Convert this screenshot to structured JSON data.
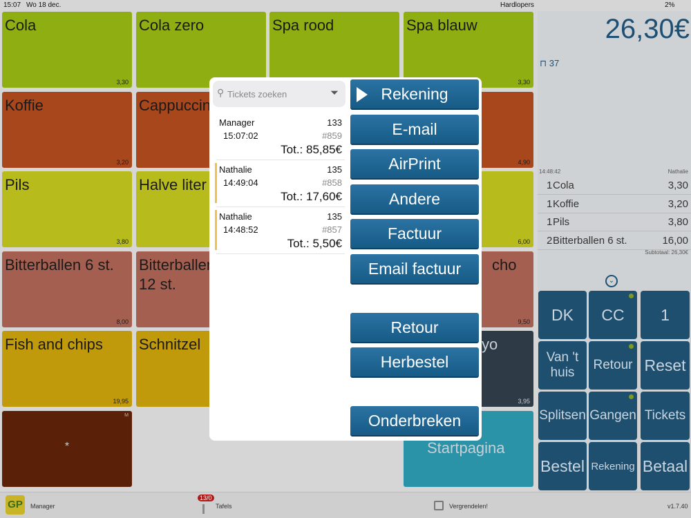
{
  "status_bar": {
    "time": "15:07",
    "date": "Wo 18 dec.",
    "network": "Hardlopers",
    "battery": "2%"
  },
  "products": [
    {
      "name": "Cola",
      "price": "3,30"
    },
    {
      "name": "Cola zero"
    },
    {
      "name": "Spa rood"
    },
    {
      "name": "Spa blauw",
      "price": "3,30"
    },
    {
      "name": "Koffie",
      "price": "3,20"
    },
    {
      "name": "Cappuccin"
    },
    {
      "price": "4,90"
    },
    {
      "name": "Pils",
      "price": "3,80"
    },
    {
      "name": "Halve liter"
    },
    {
      "price": "6,00"
    },
    {
      "name": "Bitterballen 6 st.",
      "price": "8,00"
    },
    {
      "name": "Bitterballen 12 st."
    },
    {
      "name": "cho",
      "price": "9,50"
    },
    {
      "name": "Fish and chips",
      "price": "19,95"
    },
    {
      "name": "Schnitzel"
    },
    {
      "name": "yo",
      "price": "3,95"
    },
    {
      "name": "*",
      "mark": "M"
    },
    {
      "name": "Startpagina"
    }
  ],
  "order": {
    "total": "26,30€",
    "table": "37",
    "time": "14:48:42",
    "waiter": "Nathalie",
    "items": [
      {
        "qty": "1",
        "name": "Cola",
        "price": "3,30"
      },
      {
        "qty": "1",
        "name": "Koffie",
        "price": "3,20"
      },
      {
        "qty": "1",
        "name": "Pils",
        "price": "3,80"
      },
      {
        "qty": "2",
        "name": "Bitterballen 6 st.",
        "price": "16,00"
      }
    ],
    "subtotal": "Subtotaal: 26,30€"
  },
  "keypad": [
    "DK",
    "CC",
    "1",
    "Van 't huis",
    "Retour",
    "Reset",
    "Splitsen",
    "Gangen",
    "Tickets",
    "Bestel",
    "Rekening",
    "Betaal"
  ],
  "bottom_bar": {
    "logo": "GP",
    "user": "Manager",
    "badge": "13/0",
    "tables": "Tafels",
    "lock": "Vergrendelen!",
    "version": "v1.7.40"
  },
  "popup": {
    "search_placeholder": "Tickets zoeken",
    "tickets": [
      {
        "user": "Manager",
        "table": "133",
        "time": "15:07:02",
        "number": "#859",
        "total": "Tot.: 85,85€"
      },
      {
        "user": "Nathalie",
        "table": "135",
        "time": "14:49:04",
        "number": "#858",
        "total": "Tot.: 17,60€"
      },
      {
        "user": "Nathalie",
        "table": "135",
        "time": "14:48:52",
        "number": "#857",
        "total": "Tot.: 5,50€"
      }
    ],
    "actions": [
      "Rekening",
      "E-mail",
      "AirPrint",
      "Andere",
      "Factuur",
      "Email factuur",
      "Retour",
      "Herbestel",
      "Onderbreken"
    ]
  }
}
